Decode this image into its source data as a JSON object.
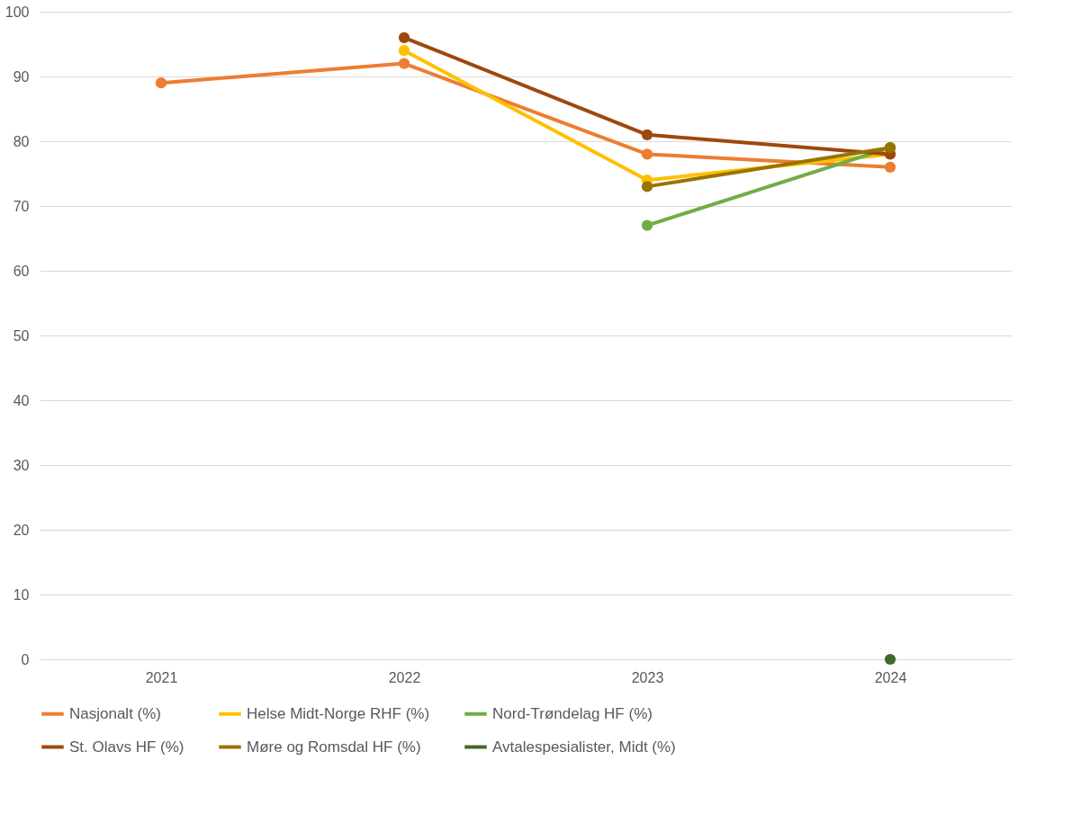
{
  "chart_data": {
    "type": "line",
    "categories": [
      "2021",
      "2022",
      "2023",
      "2024"
    ],
    "series": [
      {
        "name": "Nasjonalt (%)",
        "color": "#ed7d31",
        "values": [
          89,
          92,
          78,
          76
        ]
      },
      {
        "name": "Helse Midt-Norge RHF (%)",
        "color": "#ffc000",
        "values": [
          null,
          94,
          74,
          78
        ]
      },
      {
        "name": "Nord-Trøndelag HF (%)",
        "color": "#70ad47",
        "values": [
          null,
          null,
          67,
          79
        ]
      },
      {
        "name": "St. Olavs HF (%)",
        "color": "#9e480e",
        "values": [
          null,
          96,
          81,
          78
        ]
      },
      {
        "name": "Møre og Romsdal HF (%)",
        "color": "#997300",
        "values": [
          null,
          null,
          73,
          79
        ]
      },
      {
        "name": "Avtalespesialister, Midt (%)",
        "color": "#43682b",
        "values": [
          null,
          null,
          null,
          0
        ]
      }
    ],
    "ylim": [
      0,
      100
    ],
    "yticks": [
      0,
      10,
      20,
      30,
      40,
      50,
      60,
      70,
      80,
      90,
      100
    ],
    "grid": "y",
    "legend": "bottom",
    "marker": "circle",
    "line_style": "solid"
  }
}
